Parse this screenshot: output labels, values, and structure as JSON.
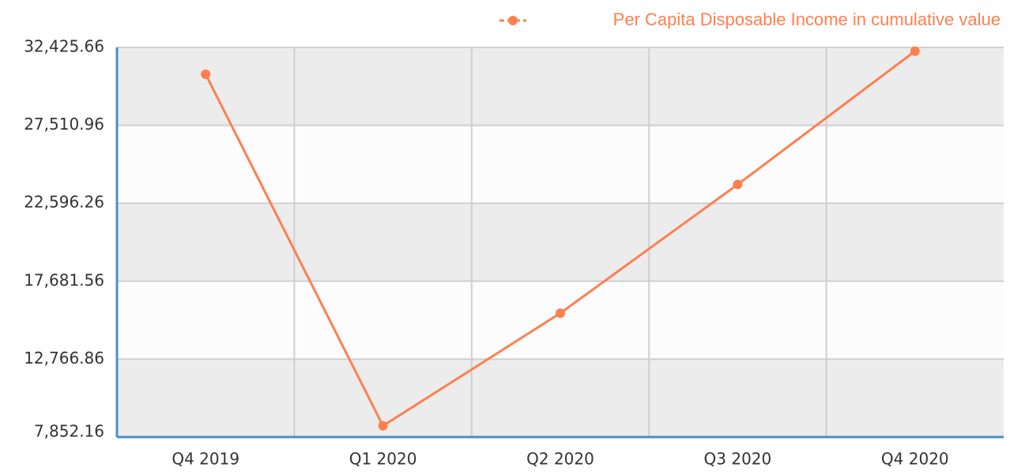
{
  "chart_data": {
    "type": "line",
    "categories": [
      "Q4 2019",
      "Q1 2020",
      "Q2 2020",
      "Q3 2020",
      "Q4 2020"
    ],
    "series": [
      {
        "name": "Per Capita Disposable Income in cumulative value",
        "color": "#ff7f4f",
        "values": [
          30733,
          8561,
          15666,
          23781,
          32189
        ]
      }
    ],
    "ylim": [
      7852.16,
      32425.66
    ],
    "yticks": [
      {
        "value": 7852.16,
        "label": "7,852.16"
      },
      {
        "value": 12766.86,
        "label": "12,766.86"
      },
      {
        "value": 17681.56,
        "label": "17,681.56"
      },
      {
        "value": 22596.26,
        "label": "22,596.26"
      },
      {
        "value": 27510.96,
        "label": "27,510.96"
      },
      {
        "value": 32425.66,
        "label": "32,425.66"
      }
    ],
    "grid": true,
    "legend": "top-right"
  }
}
